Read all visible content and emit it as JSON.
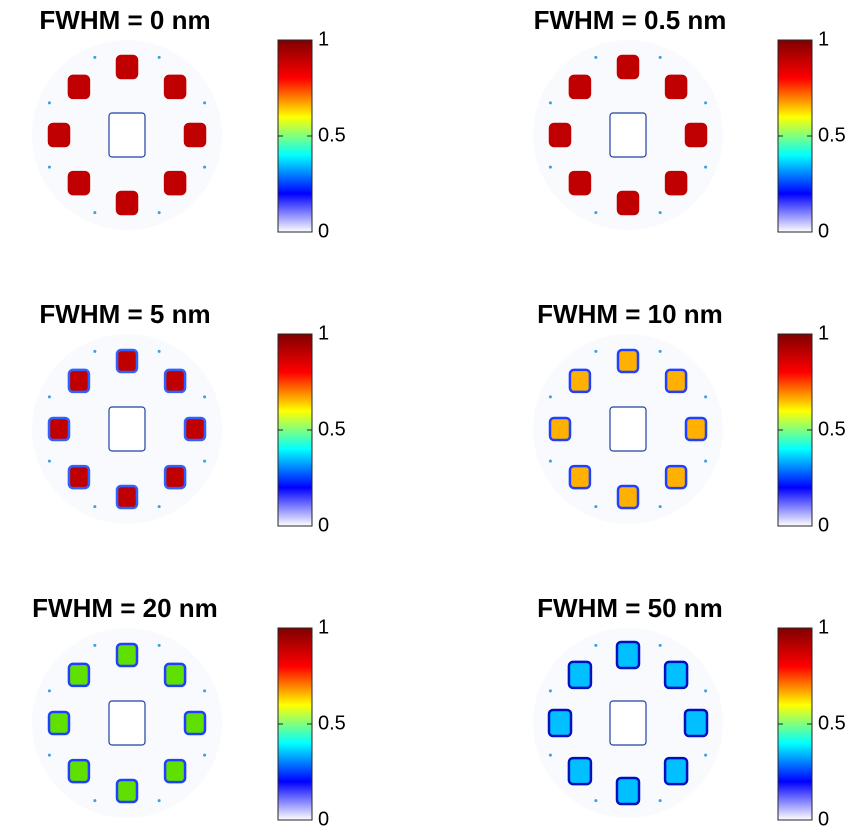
{
  "chart_data": [
    {
      "type": "heatmap",
      "title": "FWHM = 0 nm",
      "clim": [
        0,
        1
      ],
      "cticks": [
        0,
        0.5,
        1
      ],
      "colormap": [
        "#ffffff",
        "#0000ff",
        "#00ffff",
        "#ffff00",
        "#ff0000",
        "#800000"
      ]
    },
    {
      "type": "heatmap",
      "title": "FWHM = 0.5 nm",
      "clim": [
        0,
        1
      ],
      "cticks": [
        0,
        0.5,
        1
      ],
      "colormap": [
        "#ffffff",
        "#0000ff",
        "#00ffff",
        "#ffff00",
        "#ff0000",
        "#800000"
      ]
    },
    {
      "type": "heatmap",
      "title": "FWHM = 5 nm",
      "clim": [
        0,
        1
      ],
      "cticks": [
        0,
        0.5,
        1
      ],
      "colormap": [
        "#ffffff",
        "#0000ff",
        "#00ffff",
        "#ffff00",
        "#ff0000",
        "#800000"
      ]
    },
    {
      "type": "heatmap",
      "title": "FWHM = 10 nm",
      "clim": [
        0,
        1
      ],
      "cticks": [
        0,
        0.5,
        1
      ],
      "colormap": [
        "#ffffff",
        "#0000ff",
        "#00ffff",
        "#ffff00",
        "#ff0000",
        "#800000"
      ]
    },
    {
      "type": "heatmap",
      "title": "FWHM = 20 nm",
      "clim": [
        0,
        1
      ],
      "cticks": [
        0,
        0.5,
        1
      ],
      "colormap": [
        "#ffffff",
        "#0000ff",
        "#00ffff",
        "#ffff00",
        "#ff0000",
        "#800000"
      ]
    },
    {
      "type": "heatmap",
      "title": "FWHM = 50 nm",
      "clim": [
        0,
        1
      ],
      "cticks": [
        0,
        0.5,
        1
      ],
      "colormap": [
        "#ffffff",
        "#0000ff",
        "#00ffff",
        "#ffff00",
        "#ff0000",
        "#800000"
      ]
    }
  ]
}
